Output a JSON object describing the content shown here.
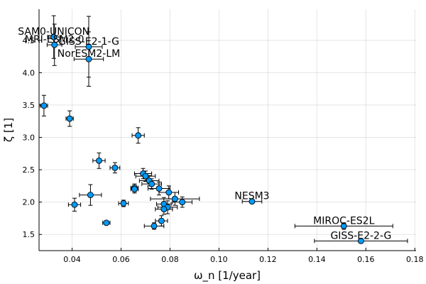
{
  "chart_data": {
    "type": "scatter",
    "title": "",
    "xlabel": "ω_n [1/year]",
    "ylabel": "ζ [1]",
    "xlim": [
      0.0265,
      0.1805
    ],
    "ylim": [
      1.25,
      4.98
    ],
    "xticks": [
      0.04,
      0.06,
      0.08,
      0.1,
      0.12,
      0.14,
      0.16,
      0.18
    ],
    "xtick_labels": [
      "0.04",
      "0.06",
      "0.08",
      "0.10",
      "0.12",
      "0.14",
      "0.16",
      "0.18"
    ],
    "yticks": [
      1.5,
      2.0,
      2.5,
      3.0,
      3.5,
      4.0,
      4.5
    ],
    "ytick_labels": [
      "1.5",
      "2.0",
      "2.5",
      "3.0",
      "3.5",
      "4.0",
      "4.5"
    ],
    "grid": true,
    "legend": false,
    "marker_color": "#009af9",
    "points": [
      {
        "x": 0.0325,
        "y": 4.55,
        "xerr": 0.0025,
        "yerr": 0.33,
        "label": "SAM0-UNICON"
      },
      {
        "x": 0.0328,
        "y": 4.43,
        "xerr": 0.003,
        "yerr": 0.32,
        "label": "MRI-ESM2-0"
      },
      {
        "x": 0.0468,
        "y": 4.4,
        "xerr": 0.0055,
        "yerr": 0.47,
        "label": "GISS-E2-1-G"
      },
      {
        "x": 0.0468,
        "y": 4.21,
        "xerr": 0.006,
        "yerr": 0.42,
        "label": "NorESM2-LM"
      },
      {
        "x": 0.0285,
        "y": 3.49,
        "xerr": 0.0015,
        "yerr": 0.16,
        "label": ""
      },
      {
        "x": 0.039,
        "y": 3.29,
        "xerr": 0.0015,
        "yerr": 0.12,
        "label": ""
      },
      {
        "x": 0.067,
        "y": 3.03,
        "xerr": 0.0025,
        "yerr": 0.12,
        "label": ""
      },
      {
        "x": 0.051,
        "y": 2.64,
        "xerr": 0.0025,
        "yerr": 0.12,
        "label": ""
      },
      {
        "x": 0.0575,
        "y": 2.53,
        "xerr": 0.002,
        "yerr": 0.08,
        "label": ""
      },
      {
        "x": 0.069,
        "y": 2.44,
        "xerr": 0.0035,
        "yerr": 0.08,
        "label": ""
      },
      {
        "x": 0.07,
        "y": 2.4,
        "xerr": 0.004,
        "yerr": 0.08,
        "label": ""
      },
      {
        "x": 0.0715,
        "y": 2.33,
        "xerr": 0.004,
        "yerr": 0.08,
        "label": ""
      },
      {
        "x": 0.0725,
        "y": 2.28,
        "xerr": 0.004,
        "yerr": 0.08,
        "label": ""
      },
      {
        "x": 0.0655,
        "y": 2.22,
        "xerr": 0.0015,
        "yerr": 0.06,
        "label": ""
      },
      {
        "x": 0.0655,
        "y": 2.2,
        "xerr": 0.0015,
        "yerr": 0.06,
        "label": ""
      },
      {
        "x": 0.0755,
        "y": 2.21,
        "xerr": 0.0045,
        "yerr": 0.1,
        "label": ""
      },
      {
        "x": 0.0795,
        "y": 2.15,
        "xerr": 0.004,
        "yerr": 0.1,
        "label": ""
      },
      {
        "x": 0.0475,
        "y": 2.11,
        "xerr": 0.0045,
        "yerr": 0.16,
        "label": ""
      },
      {
        "x": 0.082,
        "y": 2.05,
        "xerr": 0.01,
        "yerr": 0.1,
        "label": ""
      },
      {
        "x": 0.085,
        "y": 2.0,
        "xerr": 0.004,
        "yerr": 0.08,
        "label": ""
      },
      {
        "x": 0.041,
        "y": 1.96,
        "xerr": 0.0025,
        "yerr": 0.1,
        "label": ""
      },
      {
        "x": 0.061,
        "y": 1.98,
        "xerr": 0.002,
        "yerr": 0.05,
        "label": ""
      },
      {
        "x": 0.0775,
        "y": 1.97,
        "xerr": 0.003,
        "yerr": 0.1,
        "label": ""
      },
      {
        "x": 0.079,
        "y": 1.92,
        "xerr": 0.004,
        "yerr": 0.1,
        "label": ""
      },
      {
        "x": 0.0775,
        "y": 1.89,
        "xerr": 0.0035,
        "yerr": 0.08,
        "label": ""
      },
      {
        "x": 0.1135,
        "y": 2.01,
        "xerr": 0.004,
        "yerr": 0.02,
        "label": "NESM3"
      },
      {
        "x": 0.0765,
        "y": 1.71,
        "xerr": 0.0025,
        "yerr": 0.08,
        "label": ""
      },
      {
        "x": 0.054,
        "y": 1.68,
        "xerr": 0.0015,
        "yerr": 0.03,
        "label": ""
      },
      {
        "x": 0.0735,
        "y": 1.63,
        "xerr": 0.004,
        "yerr": 0.05,
        "label": ""
      },
      {
        "x": 0.151,
        "y": 1.63,
        "xerr": 0.02,
        "yerr": 0.05,
        "label": "MIROC-ES2L"
      },
      {
        "x": 0.158,
        "y": 1.4,
        "xerr": 0.019,
        "yerr": 0.03,
        "label": "GISS-E2-2-G"
      }
    ]
  }
}
